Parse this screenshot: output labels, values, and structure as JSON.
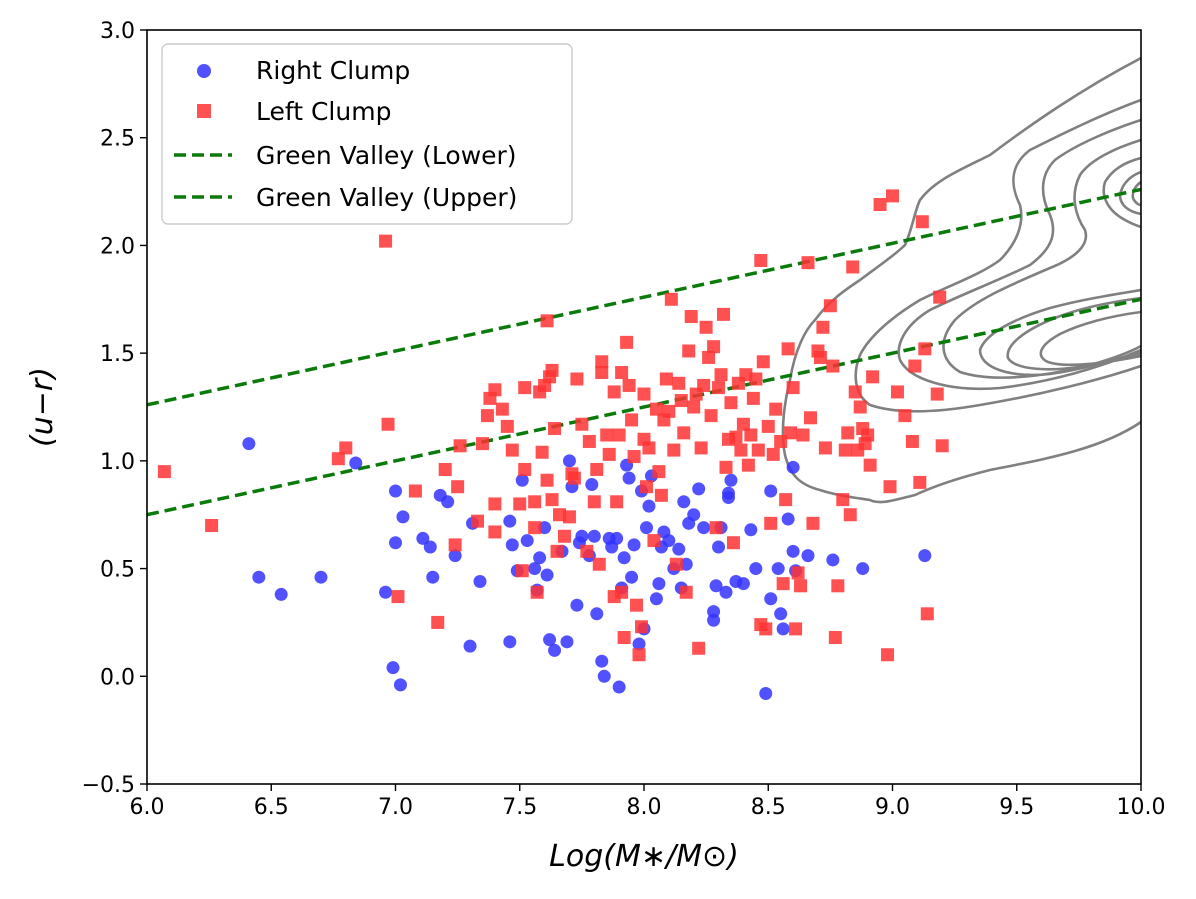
{
  "chart_data": {
    "type": "scatter",
    "xlabel": "Log(M∗/M⊙)",
    "ylabel": "(u−r)",
    "xlim": [
      6.0,
      10.0
    ],
    "ylim": [
      -0.5,
      3.0
    ],
    "xticks": [
      "6.0",
      "6.5",
      "7.0",
      "7.5",
      "8.0",
      "8.5",
      "9.0",
      "9.5",
      "10.0"
    ],
    "yticks": [
      "−0.5",
      "0.0",
      "0.5",
      "1.0",
      "1.5",
      "2.0",
      "2.5",
      "3.0"
    ],
    "grid": false,
    "legend_position": "top-left",
    "colors": {
      "right_clump": "#3333ff",
      "left_clump": "#ff3333",
      "green_valley": "#0a7a0a",
      "contour": "#808080"
    },
    "series": [
      {
        "name": "Right Clump",
        "marker": "circle",
        "points": [
          [
            6.41,
            1.08
          ],
          [
            6.45,
            0.46
          ],
          [
            6.54,
            0.38
          ],
          [
            6.7,
            0.46
          ],
          [
            6.84,
            0.99
          ],
          [
            6.96,
            0.39
          ],
          [
            6.99,
            0.04
          ],
          [
            7.0,
            0.86
          ],
          [
            7.0,
            0.62
          ],
          [
            7.02,
            -0.04
          ],
          [
            7.03,
            0.74
          ],
          [
            7.11,
            0.64
          ],
          [
            7.14,
            0.6
          ],
          [
            7.15,
            0.46
          ],
          [
            7.18,
            0.84
          ],
          [
            7.21,
            0.81
          ],
          [
            7.24,
            0.56
          ],
          [
            7.3,
            0.14
          ],
          [
            7.31,
            0.71
          ],
          [
            7.34,
            0.44
          ],
          [
            7.46,
            0.16
          ],
          [
            7.46,
            0.72
          ],
          [
            7.47,
            0.61
          ],
          [
            7.49,
            0.49
          ],
          [
            7.51,
            0.91
          ],
          [
            7.53,
            0.63
          ],
          [
            7.56,
            0.5
          ],
          [
            7.57,
            0.4
          ],
          [
            7.58,
            0.55
          ],
          [
            7.6,
            0.69
          ],
          [
            7.61,
            0.47
          ],
          [
            7.62,
            0.17
          ],
          [
            7.64,
            0.12
          ],
          [
            7.67,
            0.58
          ],
          [
            7.69,
            0.16
          ],
          [
            7.7,
            1.0
          ],
          [
            7.71,
            0.88
          ],
          [
            7.73,
            0.33
          ],
          [
            7.74,
            0.62
          ],
          [
            7.75,
            0.65
          ],
          [
            7.78,
            0.56
          ],
          [
            7.79,
            0.89
          ],
          [
            7.8,
            0.65
          ],
          [
            7.81,
            0.29
          ],
          [
            7.83,
            0.07
          ],
          [
            7.84,
            0.0
          ],
          [
            7.86,
            0.64
          ],
          [
            7.87,
            0.6
          ],
          [
            7.89,
            0.64
          ],
          [
            7.9,
            -0.05
          ],
          [
            7.91,
            0.41
          ],
          [
            7.92,
            0.55
          ],
          [
            7.93,
            0.98
          ],
          [
            7.94,
            0.92
          ],
          [
            7.95,
            0.46
          ],
          [
            7.96,
            0.61
          ],
          [
            7.98,
            0.15
          ],
          [
            7.99,
            0.86
          ],
          [
            8.0,
            0.22
          ],
          [
            8.01,
            0.69
          ],
          [
            8.02,
            0.79
          ],
          [
            8.03,
            0.93
          ],
          [
            8.05,
            0.36
          ],
          [
            8.06,
            0.43
          ],
          [
            8.07,
            0.6
          ],
          [
            8.08,
            0.67
          ],
          [
            8.1,
            0.63
          ],
          [
            8.12,
            0.5
          ],
          [
            8.14,
            0.59
          ],
          [
            8.15,
            0.41
          ],
          [
            8.16,
            0.81
          ],
          [
            8.17,
            0.52
          ],
          [
            8.18,
            0.71
          ],
          [
            8.2,
            0.75
          ],
          [
            8.22,
            0.87
          ],
          [
            8.24,
            0.69
          ],
          [
            8.28,
            0.3
          ],
          [
            8.28,
            0.26
          ],
          [
            8.29,
            0.42
          ],
          [
            8.3,
            0.6
          ],
          [
            8.31,
            0.69
          ],
          [
            8.33,
            0.39
          ],
          [
            8.34,
            0.83
          ],
          [
            8.34,
            0.85
          ],
          [
            8.35,
            0.91
          ],
          [
            8.37,
            0.44
          ],
          [
            8.4,
            0.43
          ],
          [
            8.43,
            0.68
          ],
          [
            8.45,
            0.5
          ],
          [
            8.49,
            -0.08
          ],
          [
            8.51,
            0.36
          ],
          [
            8.51,
            0.86
          ],
          [
            8.54,
            0.5
          ],
          [
            8.55,
            0.29
          ],
          [
            8.56,
            0.22
          ],
          [
            8.58,
            0.73
          ],
          [
            8.6,
            0.97
          ],
          [
            8.6,
            0.58
          ],
          [
            8.61,
            0.49
          ],
          [
            8.66,
            0.56
          ],
          [
            8.76,
            0.54
          ],
          [
            8.88,
            0.5
          ],
          [
            9.13,
            0.56
          ]
        ]
      },
      {
        "name": "Left Clump",
        "marker": "square",
        "points": [
          [
            6.07,
            0.95
          ],
          [
            6.26,
            0.7
          ],
          [
            6.77,
            1.01
          ],
          [
            6.8,
            1.06
          ],
          [
            6.96,
            2.02
          ],
          [
            6.97,
            1.17
          ],
          [
            7.01,
            0.37
          ],
          [
            7.08,
            0.86
          ],
          [
            7.17,
            0.25
          ],
          [
            7.2,
            0.96
          ],
          [
            7.24,
            0.61
          ],
          [
            7.25,
            0.88
          ],
          [
            7.26,
            1.07
          ],
          [
            7.33,
            0.72
          ],
          [
            7.35,
            1.08
          ],
          [
            7.37,
            1.21
          ],
          [
            7.38,
            1.29
          ],
          [
            7.4,
            0.8
          ],
          [
            7.4,
            1.33
          ],
          [
            7.4,
            0.67
          ],
          [
            7.43,
            1.24
          ],
          [
            7.45,
            1.16
          ],
          [
            7.47,
            1.05
          ],
          [
            7.5,
            0.8
          ],
          [
            7.51,
            0.49
          ],
          [
            7.52,
            1.34
          ],
          [
            7.52,
            0.96
          ],
          [
            7.56,
            0.81
          ],
          [
            7.56,
            0.69
          ],
          [
            7.57,
            0.39
          ],
          [
            7.58,
            1.32
          ],
          [
            7.59,
            1.04
          ],
          [
            7.6,
            1.35
          ],
          [
            7.61,
            0.91
          ],
          [
            7.61,
            1.65
          ],
          [
            7.62,
            1.39
          ],
          [
            7.63,
            1.42
          ],
          [
            7.63,
            0.82
          ],
          [
            7.64,
            1.15
          ],
          [
            7.65,
            0.58
          ],
          [
            7.66,
            0.75
          ],
          [
            7.68,
            0.65
          ],
          [
            7.7,
            0.74
          ],
          [
            7.71,
            0.94
          ],
          [
            7.72,
            0.92
          ],
          [
            7.73,
            1.38
          ],
          [
            7.75,
            1.17
          ],
          [
            7.77,
            0.58
          ],
          [
            7.78,
            1.09
          ],
          [
            7.8,
            0.81
          ],
          [
            7.81,
            0.96
          ],
          [
            7.82,
            0.52
          ],
          [
            7.83,
            1.41
          ],
          [
            7.83,
            1.46
          ],
          [
            7.85,
            1.12
          ],
          [
            7.86,
            1.03
          ],
          [
            7.88,
            1.32
          ],
          [
            7.88,
            0.37
          ],
          [
            7.89,
            0.81
          ],
          [
            7.9,
            1.12
          ],
          [
            7.91,
            0.39
          ],
          [
            7.91,
            1.41
          ],
          [
            7.92,
            0.18
          ],
          [
            7.93,
            1.55
          ],
          [
            7.94,
            1.35
          ],
          [
            7.95,
            1.19
          ],
          [
            7.96,
            1.02
          ],
          [
            7.97,
            0.33
          ],
          [
            7.98,
            0.1
          ],
          [
            7.99,
            0.23
          ],
          [
            8.0,
            1.31
          ],
          [
            8.0,
            1.1
          ],
          [
            8.01,
            0.88
          ],
          [
            8.02,
            1.06
          ],
          [
            8.04,
            0.63
          ],
          [
            8.05,
            1.24
          ],
          [
            8.06,
            0.95
          ],
          [
            8.07,
            0.84
          ],
          [
            8.08,
            1.19
          ],
          [
            8.09,
            1.38
          ],
          [
            8.1,
            1.23
          ],
          [
            8.11,
            1.75
          ],
          [
            8.12,
            1.05
          ],
          [
            8.13,
            0.52
          ],
          [
            8.14,
            1.36
          ],
          [
            8.15,
            1.28
          ],
          [
            8.16,
            1.13
          ],
          [
            8.17,
            0.39
          ],
          [
            8.18,
            1.51
          ],
          [
            8.19,
            1.67
          ],
          [
            8.2,
            1.25
          ],
          [
            8.21,
            1.31
          ],
          [
            8.22,
            0.13
          ],
          [
            8.23,
            1.06
          ],
          [
            8.24,
            1.35
          ],
          [
            8.25,
            1.62
          ],
          [
            8.26,
            1.48
          ],
          [
            8.27,
            1.21
          ],
          [
            8.28,
            1.53
          ],
          [
            8.29,
            0.69
          ],
          [
            8.3,
            1.34
          ],
          [
            8.31,
            1.4
          ],
          [
            8.32,
            1.68
          ],
          [
            8.33,
            0.97
          ],
          [
            8.34,
            1.1
          ],
          [
            8.35,
            1.27
          ],
          [
            8.36,
            0.62
          ],
          [
            8.37,
            1.11
          ],
          [
            8.38,
            1.36
          ],
          [
            8.39,
            1.05
          ],
          [
            8.4,
            1.17
          ],
          [
            8.41,
            1.4
          ],
          [
            8.42,
            0.98
          ],
          [
            8.43,
            1.12
          ],
          [
            8.44,
            1.29
          ],
          [
            8.45,
            1.38
          ],
          [
            8.46,
            1.05
          ],
          [
            8.47,
            1.93
          ],
          [
            8.47,
            0.24
          ],
          [
            8.48,
            1.46
          ],
          [
            8.49,
            0.22
          ],
          [
            8.5,
            1.16
          ],
          [
            8.51,
            0.71
          ],
          [
            8.52,
            1.03
          ],
          [
            8.53,
            1.24
          ],
          [
            8.55,
            1.09
          ],
          [
            8.56,
            0.43
          ],
          [
            8.57,
            0.82
          ],
          [
            8.58,
            1.52
          ],
          [
            8.59,
            1.13
          ],
          [
            8.6,
            1.34
          ],
          [
            8.61,
            0.22
          ],
          [
            8.62,
            0.48
          ],
          [
            8.63,
            0.42
          ],
          [
            8.64,
            1.12
          ],
          [
            8.66,
            1.92
          ],
          [
            8.67,
            1.2
          ],
          [
            8.68,
            0.71
          ],
          [
            8.7,
            1.51
          ],
          [
            8.71,
            1.48
          ],
          [
            8.72,
            1.62
          ],
          [
            8.73,
            1.06
          ],
          [
            8.75,
            1.72
          ],
          [
            8.76,
            1.44
          ],
          [
            8.77,
            0.18
          ],
          [
            8.78,
            0.42
          ],
          [
            8.8,
            0.82
          ],
          [
            8.81,
            1.05
          ],
          [
            8.82,
            1.13
          ],
          [
            8.83,
            0.75
          ],
          [
            8.84,
            1.9
          ],
          [
            8.85,
            1.32
          ],
          [
            8.86,
            1.05
          ],
          [
            8.87,
            1.25
          ],
          [
            8.88,
            1.15
          ],
          [
            8.89,
            1.08
          ],
          [
            8.9,
            1.12
          ],
          [
            8.91,
            0.98
          ],
          [
            8.92,
            1.39
          ],
          [
            8.95,
            2.19
          ],
          [
            8.98,
            0.1
          ],
          [
            8.99,
            0.88
          ],
          [
            9.0,
            2.23
          ],
          [
            9.02,
            1.32
          ],
          [
            9.05,
            1.21
          ],
          [
            9.08,
            1.09
          ],
          [
            9.09,
            1.44
          ],
          [
            9.11,
            0.9
          ],
          [
            9.12,
            2.11
          ],
          [
            9.13,
            1.52
          ],
          [
            9.14,
            0.29
          ],
          [
            9.18,
            1.31
          ],
          [
            9.19,
            1.76
          ],
          [
            9.2,
            1.07
          ]
        ]
      }
    ],
    "lines": [
      {
        "name": "Green Valley (Lower)",
        "style": "dashed",
        "x": [
          6.0,
          10.0
        ],
        "y": [
          0.75,
          1.75
        ]
      },
      {
        "name": "Green Valley (Upper)",
        "style": "dashed",
        "x": [
          6.0,
          10.0
        ],
        "y": [
          1.26,
          2.26
        ]
      }
    ],
    "contours": {
      "description": "Density contours of a reference galaxy sample",
      "peaks": [
        {
          "x": 9.75,
          "y": 1.55
        },
        {
          "x": 10.0,
          "y": 2.45
        }
      ]
    },
    "legend": [
      "Right Clump",
      "Left Clump",
      "Green Valley (Lower)",
      "Green Valley (Upper)"
    ]
  }
}
